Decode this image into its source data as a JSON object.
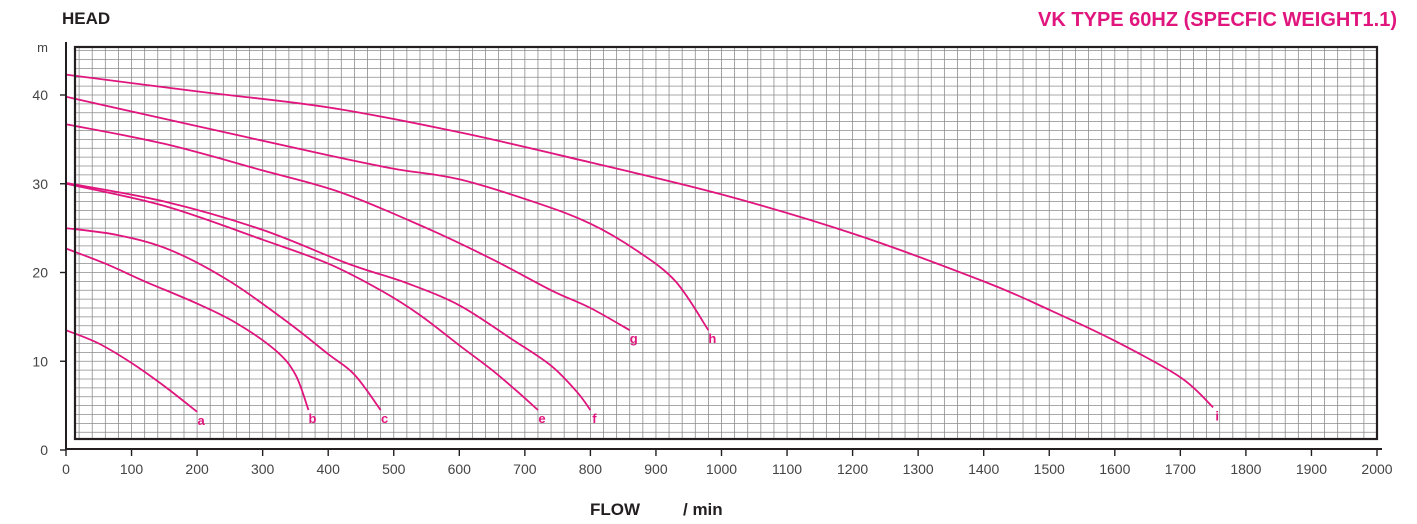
{
  "colors": {
    "curve": "#e0157d",
    "grid": "#8c8c8c",
    "frame": "#231f20",
    "text": "#231f20"
  },
  "chart_data": {
    "type": "line",
    "title": "VK TYPE 60HZ (SPECFIC WEIGHT1.1)",
    "ylabel": "HEAD",
    "yunit": "m",
    "xlabel": "FLOW",
    "xunit": "/ min",
    "xlim": [
      0,
      2000
    ],
    "ylim": [
      0,
      46
    ],
    "xticks": [
      0,
      100,
      200,
      300,
      400,
      500,
      600,
      700,
      800,
      900,
      1000,
      1100,
      1200,
      1300,
      1400,
      1500,
      1600,
      1700,
      1800,
      1900,
      2000
    ],
    "yticks": [
      0,
      10,
      20,
      30,
      40
    ],
    "grid": true,
    "series": [
      {
        "name": "a",
        "points": [
          [
            0,
            13.5
          ],
          [
            50,
            12
          ],
          [
            100,
            9.8
          ],
          [
            150,
            7.2
          ],
          [
            200,
            4.3
          ]
        ]
      },
      {
        "name": "b",
        "points": [
          [
            0,
            22.7
          ],
          [
            60,
            21
          ],
          [
            120,
            19
          ],
          [
            200,
            16.5
          ],
          [
            260,
            14.3
          ],
          [
            320,
            11.2
          ],
          [
            350,
            8.5
          ],
          [
            370,
            4.5
          ]
        ]
      },
      {
        "name": "c",
        "points": [
          [
            0,
            25
          ],
          [
            80,
            24.2
          ],
          [
            160,
            22.5
          ],
          [
            250,
            19
          ],
          [
            340,
            14.3
          ],
          [
            400,
            10.8
          ],
          [
            440,
            8.5
          ],
          [
            480,
            4.5
          ]
        ]
      },
      {
        "name": "e",
        "points": [
          [
            0,
            30
          ],
          [
            150,
            27.5
          ],
          [
            300,
            23.7
          ],
          [
            400,
            21
          ],
          [
            480,
            18
          ],
          [
            540,
            15.2
          ],
          [
            600,
            11.8
          ],
          [
            650,
            9
          ],
          [
            690,
            6.5
          ],
          [
            720,
            4.5
          ]
        ]
      },
      {
        "name": "f",
        "points": [
          [
            0,
            30.1
          ],
          [
            150,
            28
          ],
          [
            300,
            24.8
          ],
          [
            430,
            21
          ],
          [
            520,
            18.8
          ],
          [
            600,
            16.3
          ],
          [
            680,
            12.5
          ],
          [
            740,
            9.5
          ],
          [
            780,
            6.5
          ],
          [
            800,
            4.5
          ]
        ]
      },
      {
        "name": "g",
        "points": [
          [
            0,
            36.7
          ],
          [
            150,
            34.5
          ],
          [
            300,
            31.5
          ],
          [
            420,
            29
          ],
          [
            550,
            25
          ],
          [
            650,
            21.5
          ],
          [
            740,
            18
          ],
          [
            800,
            16
          ],
          [
            860,
            13.5
          ]
        ]
      },
      {
        "name": "h",
        "points": [
          [
            0,
            39.8
          ],
          [
            200,
            36.5
          ],
          [
            400,
            33.2
          ],
          [
            500,
            31.7
          ],
          [
            600,
            30.5
          ],
          [
            720,
            27.8
          ],
          [
            800,
            25.5
          ],
          [
            870,
            22.5
          ],
          [
            930,
            19
          ],
          [
            980,
            13.5
          ]
        ]
      },
      {
        "name": "i",
        "points": [
          [
            0,
            42.3
          ],
          [
            200,
            40.4
          ],
          [
            400,
            38.6
          ],
          [
            600,
            35.8
          ],
          [
            800,
            32.4
          ],
          [
            1000,
            28.8
          ],
          [
            1200,
            24.4
          ],
          [
            1400,
            19
          ],
          [
            1500,
            15.8
          ],
          [
            1600,
            12.3
          ],
          [
            1700,
            8.2
          ],
          [
            1750,
            4.8
          ]
        ]
      }
    ]
  }
}
